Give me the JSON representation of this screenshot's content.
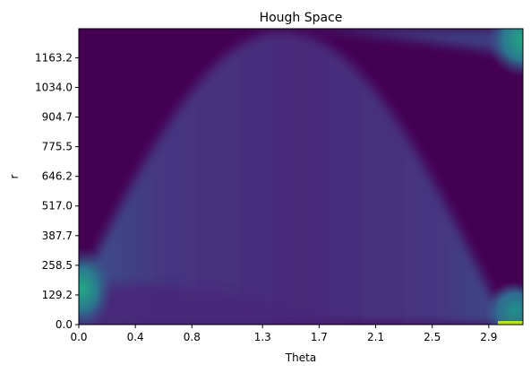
{
  "chart_data": {
    "type": "heatmap",
    "title": "Hough Space",
    "xlabel": "Theta",
    "ylabel": "r",
    "xlim": [
      0,
      3.1416
    ],
    "ylim": [
      0,
      1290
    ],
    "x_ticks": [
      {
        "value": 0.0,
        "label": "0.0"
      },
      {
        "value": 0.4,
        "label": "0.4"
      },
      {
        "value": 0.8,
        "label": "0.8"
      },
      {
        "value": 1.3,
        "label": "1.3"
      },
      {
        "value": 1.7,
        "label": "1.7"
      },
      {
        "value": 2.1,
        "label": "2.1"
      },
      {
        "value": 2.5,
        "label": "2.5"
      },
      {
        "value": 2.9,
        "label": "2.9"
      }
    ],
    "y_ticks": [
      {
        "value": 0.0,
        "label": "0.0"
      },
      {
        "value": 129.2,
        "label": "129.2"
      },
      {
        "value": 258.5,
        "label": "258.5"
      },
      {
        "value": 387.7,
        "label": "387.7"
      },
      {
        "value": 517.0,
        "label": "517.0"
      },
      {
        "value": 646.2,
        "label": "646.2"
      },
      {
        "value": 775.5,
        "label": "775.5"
      },
      {
        "value": 904.7,
        "label": "904.7"
      },
      {
        "value": 1034.0,
        "label": "1034.0"
      },
      {
        "value": 1163.2,
        "label": "1163.2"
      }
    ],
    "colormap": "viridis",
    "colors": {
      "background": "#440154",
      "band": "#472d7b",
      "hotspot": "#21918c"
    },
    "grid": false
  }
}
